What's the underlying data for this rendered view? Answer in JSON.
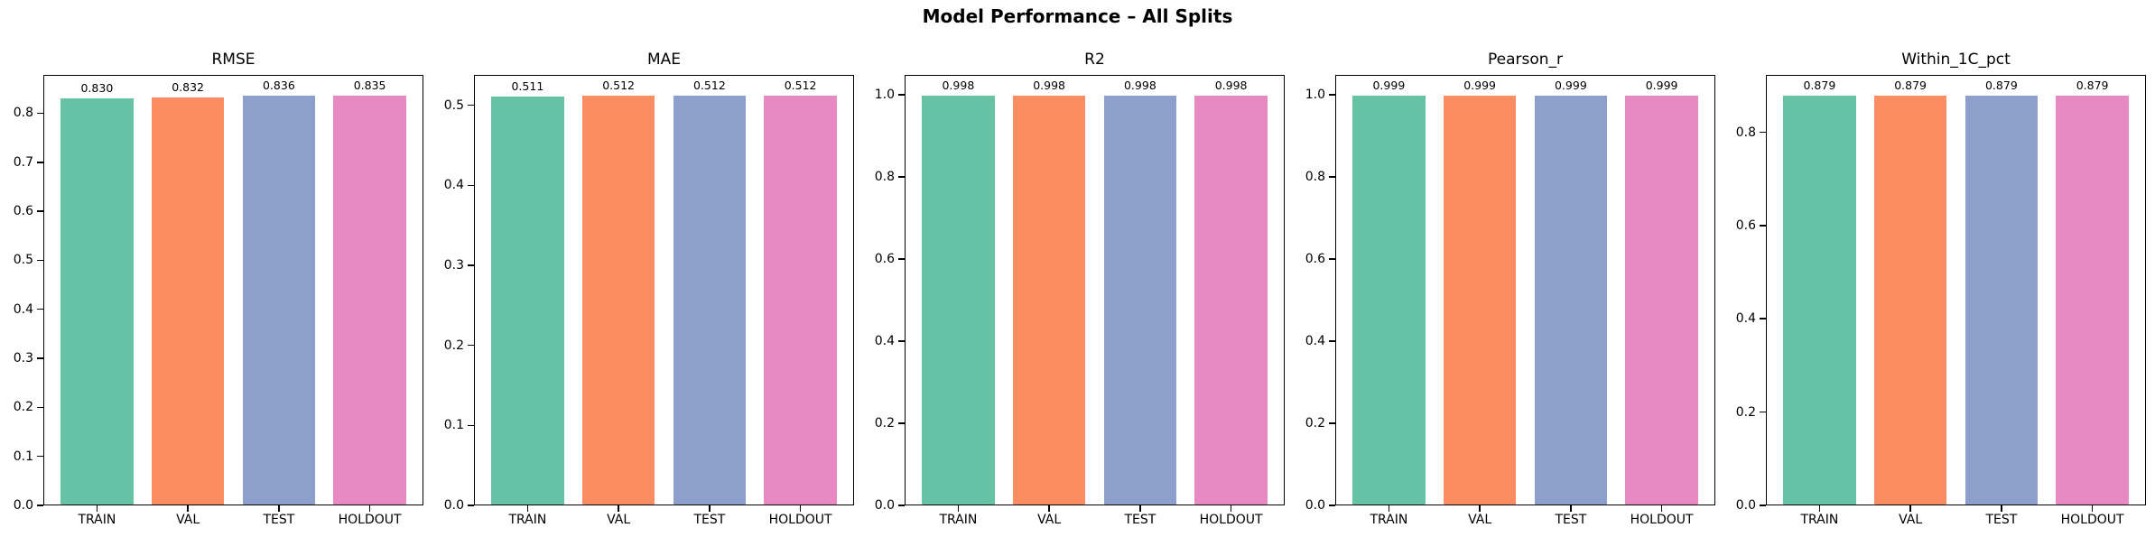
{
  "figure": {
    "suptitle": "Model Performance – All Splits",
    "background_color": "#ffffff",
    "text_color": "#000000",
    "bar_colors": [
      "#66c2a5",
      "#fc8d62",
      "#8da0cb",
      "#e78ac3"
    ],
    "categories": [
      "TRAIN",
      "VAL",
      "TEST",
      "HOLDOUT"
    ]
  },
  "chart_data": [
    {
      "type": "bar",
      "title": "RMSE",
      "categories": [
        "TRAIN",
        "VAL",
        "TEST",
        "HOLDOUT"
      ],
      "values": [
        0.83,
        0.832,
        0.836,
        0.835
      ],
      "bar_labels": [
        "0.830",
        "0.832",
        "0.836",
        "0.835"
      ],
      "bar_colors": [
        "#66c2a5",
        "#fc8d62",
        "#8da0cb",
        "#e78ac3"
      ],
      "xlabel": "",
      "ylabel": "",
      "yticks": [
        0.0,
        0.1,
        0.2,
        0.3,
        0.4,
        0.5,
        0.6,
        0.7,
        0.8
      ],
      "ylim": [
        0,
        0.878
      ],
      "grid": false,
      "legend": "none"
    },
    {
      "type": "bar",
      "title": "MAE",
      "categories": [
        "TRAIN",
        "VAL",
        "TEST",
        "HOLDOUT"
      ],
      "values": [
        0.511,
        0.512,
        0.512,
        0.512
      ],
      "bar_labels": [
        "0.511",
        "0.512",
        "0.512",
        "0.512"
      ],
      "bar_colors": [
        "#66c2a5",
        "#fc8d62",
        "#8da0cb",
        "#e78ac3"
      ],
      "xlabel": "",
      "ylabel": "",
      "yticks": [
        0.0,
        0.1,
        0.2,
        0.3,
        0.4,
        0.5
      ],
      "ylim": [
        0,
        0.538
      ],
      "grid": false,
      "legend": "none"
    },
    {
      "type": "bar",
      "title": "R2",
      "categories": [
        "TRAIN",
        "VAL",
        "TEST",
        "HOLDOUT"
      ],
      "values": [
        0.998,
        0.998,
        0.998,
        0.998
      ],
      "bar_labels": [
        "0.998",
        "0.998",
        "0.998",
        "0.998"
      ],
      "bar_colors": [
        "#66c2a5",
        "#fc8d62",
        "#8da0cb",
        "#e78ac3"
      ],
      "xlabel": "",
      "ylabel": "",
      "yticks": [
        0.0,
        0.2,
        0.4,
        0.6,
        0.8,
        1.0
      ],
      "ylim": [
        0,
        1.048
      ],
      "grid": false,
      "legend": "none"
    },
    {
      "type": "bar",
      "title": "Pearson_r",
      "categories": [
        "TRAIN",
        "VAL",
        "TEST",
        "HOLDOUT"
      ],
      "values": [
        0.999,
        0.999,
        0.999,
        0.999
      ],
      "bar_labels": [
        "0.999",
        "0.999",
        "0.999",
        "0.999"
      ],
      "bar_colors": [
        "#66c2a5",
        "#fc8d62",
        "#8da0cb",
        "#e78ac3"
      ],
      "xlabel": "",
      "ylabel": "",
      "yticks": [
        0.0,
        0.2,
        0.4,
        0.6,
        0.8,
        1.0
      ],
      "ylim": [
        0,
        1.049
      ],
      "grid": false,
      "legend": "none"
    },
    {
      "type": "bar",
      "title": "Within_1C_pct",
      "categories": [
        "TRAIN",
        "VAL",
        "TEST",
        "HOLDOUT"
      ],
      "values": [
        0.879,
        0.879,
        0.879,
        0.879
      ],
      "bar_labels": [
        "0.879",
        "0.879",
        "0.879",
        "0.879"
      ],
      "bar_colors": [
        "#66c2a5",
        "#fc8d62",
        "#8da0cb",
        "#e78ac3"
      ],
      "xlabel": "",
      "ylabel": "",
      "yticks": [
        0.0,
        0.2,
        0.4,
        0.6,
        0.8
      ],
      "ylim": [
        0,
        0.923
      ],
      "grid": false,
      "legend": "none"
    }
  ]
}
